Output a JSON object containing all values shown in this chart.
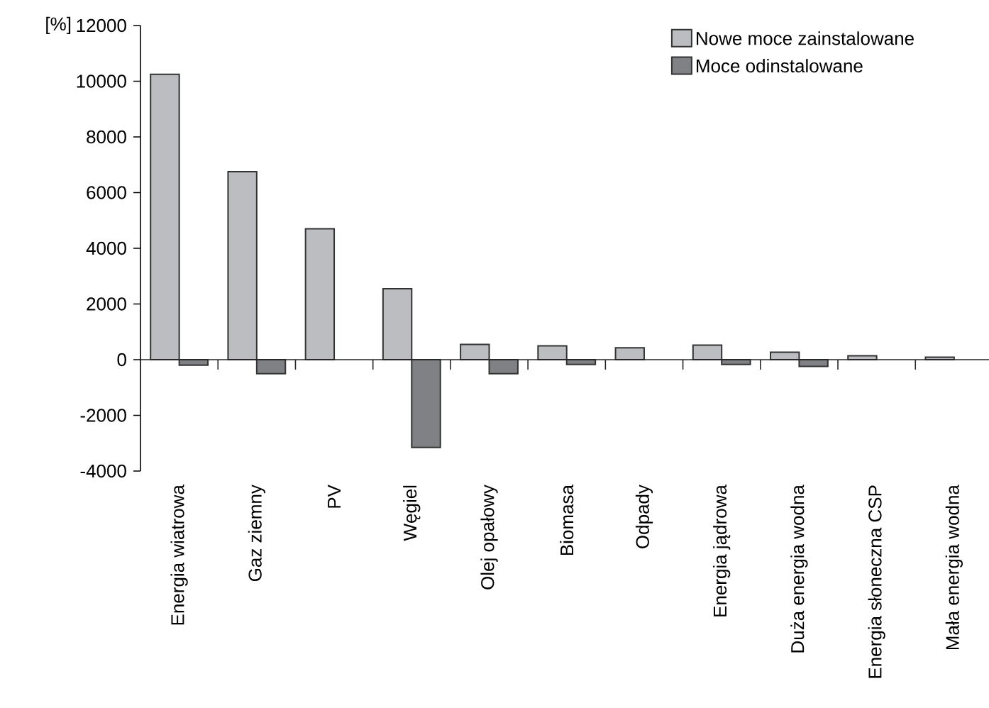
{
  "chart_data": {
    "type": "bar",
    "ylabel": "[%]",
    "categories": [
      "Energia wiatrowa",
      "Gaz ziemny",
      "PV",
      "Węgiel",
      "Olej opałowy",
      "Biomasa",
      "Odpady",
      "Energia jądrowa",
      "Duża energia wodna",
      "Energia słoneczna CSP",
      "Mała energia wodna"
    ],
    "series": [
      {
        "name": "Nowe moce zainstalowane",
        "color": "#bcbdc1",
        "values": [
          10250,
          6750,
          4700,
          2550,
          550,
          500,
          430,
          520,
          270,
          140,
          90
        ]
      },
      {
        "name": "Moce odinstalowane",
        "color": "#808184",
        "values": [
          -200,
          -500,
          null,
          -3150,
          -500,
          -170,
          null,
          -170,
          -240,
          null,
          null
        ]
      }
    ],
    "ylim": [
      -4000,
      12000
    ],
    "yticks": [
      -4000,
      -2000,
      0,
      2000,
      4000,
      6000,
      8000,
      10000,
      12000
    ],
    "legend": "top right"
  }
}
